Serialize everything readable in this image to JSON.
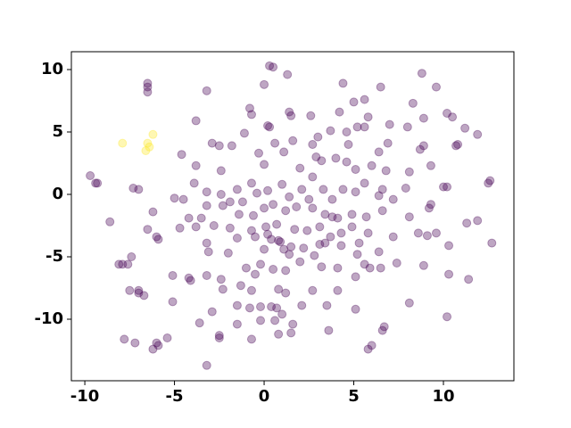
{
  "chart_data": {
    "type": "scatter",
    "xlim": [
      -10.75,
      13.93
    ],
    "ylim": [
      -14.93,
      11.43
    ],
    "xticks": [
      -10,
      -5,
      0,
      5,
      10
    ],
    "yticks": [
      -10,
      -5,
      0,
      5,
      10
    ],
    "series": [
      {
        "color": "#440154",
        "x": [
          0.3,
          0.5,
          1.3,
          -6.5,
          -6.5,
          -6.5,
          -3.2,
          0,
          4.4,
          8.8,
          9.6,
          5.6,
          6.5,
          8.3,
          5,
          4.2,
          2.6,
          1.4,
          1.5,
          -0.8,
          -0.7,
          -3.8,
          0.2,
          0.3,
          -1.1,
          -2.9,
          -2.5,
          -1.8,
          0.6,
          1.6,
          2.7,
          3.0,
          3.7,
          4.6,
          5.2,
          5.6,
          5.8,
          7.0,
          8.0,
          8.9,
          10.2,
          10.5,
          11.2,
          11.9,
          10.7,
          10.8,
          8.7,
          8.9,
          6.9,
          6.4,
          4.7,
          4.0,
          2.9,
          3.2,
          1.1,
          -0.3,
          -2.4,
          -3.8,
          -4.6,
          0,
          2.0,
          2.7,
          4.6,
          5.1,
          6.0,
          6.8,
          8.1,
          9.3,
          5.6,
          6.6,
          7.9,
          10,
          10.2,
          12.6,
          12.5,
          -9.7,
          -9.4,
          -9.3,
          -7.3,
          -7,
          -5,
          -4.5,
          -3.9,
          -3.2,
          -2.4,
          -1.5,
          -0.7,
          -0.4,
          0.2,
          1.0,
          1.4,
          2.1,
          2.5,
          3.3,
          3.8,
          4.4,
          5.1,
          6.4,
          7.2,
          9.3,
          -8.6,
          -6.2,
          -6.5,
          -6,
          -5.9,
          -4.2,
          -3.5,
          -3.2,
          -2.3,
          -1.9,
          -1.2,
          -1.4,
          -0.6,
          0,
          0.5,
          1.2,
          1.8,
          2.7,
          3.4,
          3.8,
          4.1,
          4.9,
          5.7,
          6.6,
          8.1,
          9.2,
          11.3,
          11.9,
          -4.7,
          -3.8,
          -2.8,
          -1.9,
          -0.7,
          0.1,
          0.7,
          1.7,
          2.4,
          3.1,
          3.7,
          4.3,
          4.9,
          5.8,
          7.2,
          8.6,
          9.1,
          9.6,
          12.7,
          10.3,
          -3.2,
          -1.5,
          -0.5,
          0.2,
          0.4,
          0.8,
          0.9,
          1.1,
          1.5,
          2.2,
          3.1,
          3.4,
          4.3,
          5.3,
          6.4,
          2.8,
          5.2,
          -3.1,
          -2.0,
          0,
          1.4,
          -7.4,
          -8.1,
          -7.9,
          -7.6,
          -5.1,
          -4.2,
          -4.1,
          -3.2,
          -2.4,
          -1.0,
          -0.5,
          -0.2,
          0.5,
          1.2,
          2.0,
          3.2,
          4.1,
          5.1,
          5.6,
          5.9,
          6.5,
          7.4,
          8.9,
          10.3,
          11.4,
          -7.5,
          -7.0,
          -7.0,
          -6.7,
          -5.1,
          -2.3,
          -1.3,
          -0.7,
          0.8,
          1.2,
          2.7,
          4.1,
          8.1,
          -2.9,
          -1.5,
          -0.8,
          -0.2,
          0.4,
          0.7,
          1.0,
          2.1,
          3.5,
          5.1,
          10.2,
          -3.6,
          -1.5,
          -0.2,
          0.6,
          1.6,
          3.6,
          6.6,
          6.7,
          -7.8,
          -7.2,
          -6.0,
          -5.9,
          -6.2,
          -5.4,
          -2.5,
          -2.5,
          -0.7,
          0.8,
          1.5,
          5.8,
          6.0,
          -3.2
        ],
        "values": [
          10.3,
          10.2,
          9.6,
          8.9,
          8.6,
          8.2,
          8.3,
          8.8,
          8.9,
          9.7,
          8.6,
          7.6,
          8.6,
          7.3,
          7.4,
          6.6,
          6.3,
          6.6,
          6.3,
          6.9,
          6.4,
          5.9,
          5.5,
          5.4,
          4.9,
          4.1,
          3.9,
          3.9,
          4.1,
          4.3,
          4.0,
          4.6,
          5.1,
          5.0,
          5.4,
          5.4,
          6.2,
          5.6,
          5.4,
          6.1,
          6.5,
          6.2,
          5.3,
          4.8,
          3.9,
          4.0,
          3.6,
          3.9,
          4.1,
          3.4,
          4.0,
          2.9,
          3.0,
          2.7,
          3.4,
          3.3,
          1.9,
          2.3,
          3.2,
          2.4,
          2.1,
          1.4,
          2.6,
          2.0,
          2.3,
          1.9,
          1.8,
          2.3,
          0.9,
          0.4,
          0.5,
          0.6,
          0.6,
          1.1,
          0.9,
          1.5,
          0.9,
          0.9,
          0.5,
          0.4,
          -0.3,
          -0.4,
          0.9,
          0.2,
          0,
          0.4,
          0.9,
          0.1,
          0.3,
          0.8,
          -0.2,
          0.4,
          -0.4,
          0.4,
          -0.4,
          0.4,
          0.2,
          -0.1,
          -0.4,
          -0.8,
          -2.2,
          -1.4,
          -2.8,
          -3.4,
          -3.6,
          -1.9,
          -1.9,
          -0.9,
          -0.9,
          -0.6,
          -0.6,
          -1.6,
          -1.7,
          -1.1,
          -0.8,
          -1.3,
          -1.0,
          -1.1,
          -1.6,
          -1.8,
          -1.9,
          -1.6,
          -1.8,
          -1.3,
          -1.8,
          -1.1,
          -2.3,
          -2.1,
          -2.7,
          -2.6,
          -2.5,
          -2.7,
          -2.9,
          -2.6,
          -2.4,
          -2.8,
          -2.9,
          -2.6,
          -3.4,
          -3.1,
          -2.6,
          -3.1,
          -3.4,
          -3.1,
          -3.3,
          -3.1,
          -3.9,
          -4.1,
          -3.9,
          -3.5,
          -3.4,
          -3.2,
          -3.6,
          -3.7,
          -3.8,
          -4.4,
          -4.2,
          -4.3,
          -4.0,
          -3.9,
          -4.1,
          -3.9,
          -4.6,
          -4.9,
          -4.8,
          -4.6,
          -4.7,
          -4.4,
          -4.8,
          -5.0,
          -5.6,
          -5.6,
          -5.6,
          -6.5,
          -6.7,
          -6.9,
          -6.5,
          -6.8,
          -5.9,
          -6.4,
          -5.6,
          -6.0,
          -6.1,
          -5.4,
          -5.8,
          -5.9,
          -6.6,
          -5.6,
          -5.9,
          -5.9,
          -5.5,
          -5.7,
          -6.4,
          -6.8,
          -7.7,
          -7.7,
          -7.9,
          -8.1,
          -8.6,
          -7.6,
          -7.3,
          -7.7,
          -7.6,
          -7.9,
          -7.7,
          -7.7,
          -8.7,
          -9.4,
          -8.9,
          -9.1,
          -9.0,
          -9.0,
          -9.1,
          -9.6,
          -8.9,
          -8.9,
          -9.2,
          -9.8,
          -10.3,
          -10.4,
          -10.1,
          -10.1,
          -10.4,
          -10.9,
          -10.9,
          -10.6,
          -11.6,
          -11.9,
          -11.9,
          -12.1,
          -12.4,
          -11.5,
          -11.3,
          -11.5,
          -11.6,
          -11.2,
          -11.1,
          -12.4,
          -12.1,
          -13.7
        ]
      },
      {
        "color": "#fde725",
        "x": [
          -7.9,
          -6.5,
          -6.4,
          -6.6,
          -6.2
        ],
        "values": [
          4.1,
          4.1,
          3.8,
          3.5,
          4.8
        ]
      }
    ]
  }
}
